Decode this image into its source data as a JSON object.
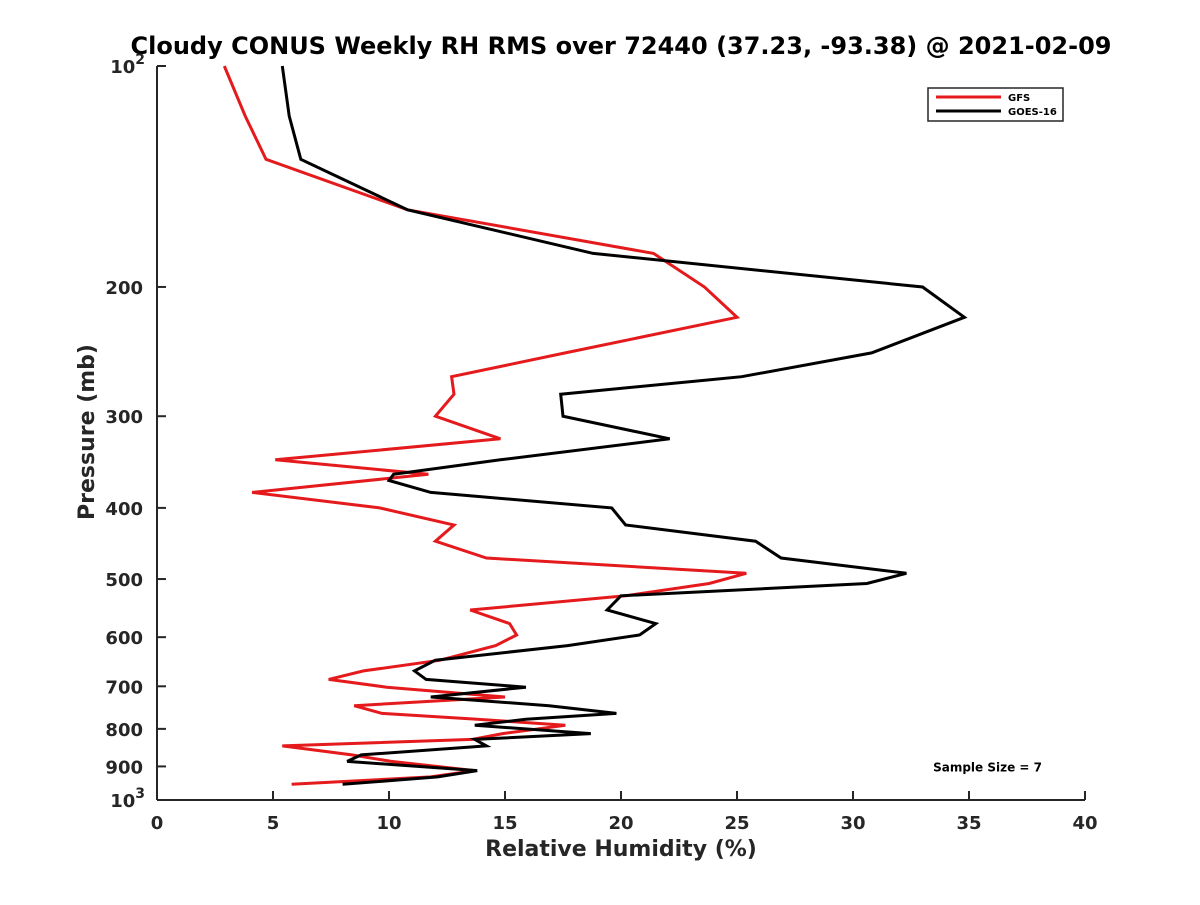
{
  "chart_data": {
    "type": "line",
    "title": "Cloudy CONUS Weekly RH RMS over 72440 (37.23, -93.38) @ 2021-02-09",
    "xlabel": "Relative Humidity (%)",
    "ylabel": "Pressure (mb)",
    "xlim": [
      0,
      40
    ],
    "ylim": [
      100,
      1000
    ],
    "y_scale": "log",
    "y_reversed": true,
    "grid": false,
    "legend_position": "top-right",
    "x_ticks": [
      "0",
      "5",
      "10",
      "15",
      "20",
      "25",
      "30",
      "35",
      "40"
    ],
    "y_ticks": [
      {
        "value": 100,
        "base": "10",
        "exp": "2"
      },
      {
        "value": 200,
        "label": "200"
      },
      {
        "value": 300,
        "label": "300"
      },
      {
        "value": 400,
        "label": "400"
      },
      {
        "value": 500,
        "label": "500"
      },
      {
        "value": 600,
        "label": "600"
      },
      {
        "value": 700,
        "label": "700"
      },
      {
        "value": 800,
        "label": "800"
      },
      {
        "value": 900,
        "label": "900"
      },
      {
        "value": 1000,
        "base": "10",
        "exp": "3"
      }
    ],
    "series": [
      {
        "name": "GFS",
        "color": "#e41a1c",
        "points": [
          [
            2.9,
            100
          ],
          [
            3.8,
            117
          ],
          [
            4.7,
            134
          ],
          [
            10.8,
            157
          ],
          [
            21.4,
            180
          ],
          [
            23.6,
            200
          ],
          [
            25.0,
            220
          ],
          [
            17.6,
            246
          ],
          [
            12.7,
            265
          ],
          [
            12.8,
            280
          ],
          [
            12.0,
            300
          ],
          [
            14.8,
            322
          ],
          [
            5.1,
            344
          ],
          [
            11.7,
            360
          ],
          [
            4.1,
            381
          ],
          [
            9.6,
            400
          ],
          [
            12.8,
            422
          ],
          [
            12.0,
            444
          ],
          [
            14.2,
            468
          ],
          [
            25.4,
            491
          ],
          [
            23.8,
            507
          ],
          [
            20.2,
            527
          ],
          [
            13.5,
            551
          ],
          [
            15.2,
            575
          ],
          [
            15.5,
            596
          ],
          [
            14.6,
            616
          ],
          [
            12.2,
            645
          ],
          [
            8.9,
            667
          ],
          [
            7.4,
            685
          ],
          [
            9.9,
            702
          ],
          [
            15.0,
            724
          ],
          [
            8.5,
            744
          ],
          [
            9.7,
            762
          ],
          [
            13.8,
            776
          ],
          [
            17.6,
            791
          ],
          [
            14.9,
            812
          ],
          [
            13.6,
            827
          ],
          [
            5.4,
            844
          ],
          [
            8.4,
            868
          ],
          [
            10.1,
            886
          ],
          [
            13.7,
            912
          ],
          [
            11.8,
            930
          ],
          [
            5.8,
            952
          ]
        ]
      },
      {
        "name": "GOES-16",
        "color": "#000000",
        "points": [
          [
            5.4,
            100
          ],
          [
            5.7,
            117
          ],
          [
            6.2,
            134
          ],
          [
            10.8,
            157
          ],
          [
            18.8,
            180
          ],
          [
            33.0,
            200
          ],
          [
            34.8,
            220
          ],
          [
            30.8,
            246
          ],
          [
            25.2,
            265
          ],
          [
            17.4,
            280
          ],
          [
            17.5,
            300
          ],
          [
            22.1,
            322
          ],
          [
            14.8,
            344
          ],
          [
            10.2,
            360
          ],
          [
            10.0,
            367
          ],
          [
            11.8,
            381
          ],
          [
            19.6,
            400
          ],
          [
            20.2,
            422
          ],
          [
            25.8,
            444
          ],
          [
            26.9,
            468
          ],
          [
            32.3,
            491
          ],
          [
            30.6,
            507
          ],
          [
            20.0,
            527
          ],
          [
            19.4,
            551
          ],
          [
            21.5,
            575
          ],
          [
            20.8,
            596
          ],
          [
            17.7,
            616
          ],
          [
            12.0,
            645
          ],
          [
            11.1,
            667
          ],
          [
            11.6,
            685
          ],
          [
            15.9,
            702
          ],
          [
            11.8,
            724
          ],
          [
            16.9,
            744
          ],
          [
            19.8,
            762
          ],
          [
            15.9,
            776
          ],
          [
            13.7,
            791
          ],
          [
            18.7,
            812
          ],
          [
            13.7,
            827
          ],
          [
            14.2,
            844
          ],
          [
            8.8,
            868
          ],
          [
            8.2,
            886
          ],
          [
            13.8,
            912
          ],
          [
            12.1,
            930
          ],
          [
            8.0,
            952
          ]
        ]
      }
    ],
    "annotations": [
      {
        "text": "Sample Size = 7",
        "x": 35.8,
        "y": 900
      }
    ]
  }
}
